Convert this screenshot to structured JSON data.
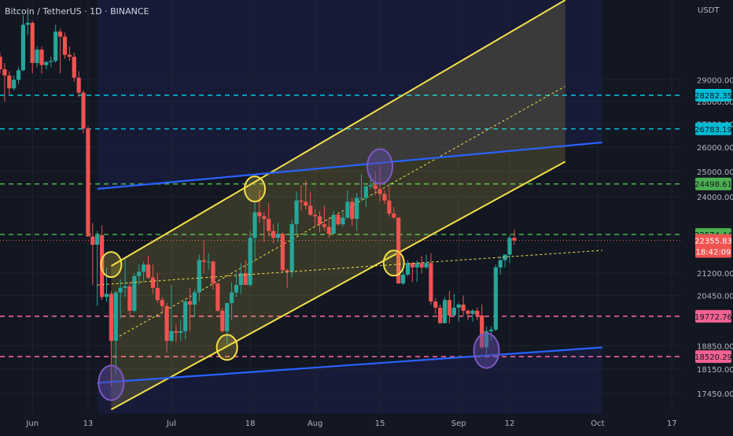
{
  "header": {
    "symbol": "Bitcoin / TetherUS",
    "separator1": " · ",
    "interval": "1D",
    "separator2": " · ",
    "exchange": "BINANCE"
  },
  "price_axis": {
    "currency": "USDT"
  },
  "colors": {
    "background": "#131722",
    "up": "#26a69a",
    "down": "#ef5350",
    "channel_line": "#f5e04a",
    "channel_fill": "#f5e04a",
    "trend_blue": "#2962ff",
    "circle_yellow": "#f5e04a",
    "circle_purple": "#7e57c2"
  },
  "chart_data": {
    "type": "candlestick",
    "x_axis": {
      "type": "date",
      "start": "2022-05-25",
      "end": "2022-10-19",
      "tick_labels": [
        {
          "label": "Jun",
          "date": "2022-06-01"
        },
        {
          "label": "13",
          "date": "2022-06-13"
        },
        {
          "label": "Jul",
          "date": "2022-07-01"
        },
        {
          "label": "18",
          "date": "2022-07-18"
        },
        {
          "label": "Aug",
          "date": "2022-08-01"
        },
        {
          "label": "15",
          "date": "2022-08-15"
        },
        {
          "label": "Sep",
          "date": "2022-09-01"
        },
        {
          "label": "12",
          "date": "2022-09-12"
        },
        {
          "label": "Oct",
          "date": "2022-10-01"
        },
        {
          "label": "17",
          "date": "2022-10-17"
        }
      ]
    },
    "y_axis": {
      "scale": "log",
      "ylim": [
        16900,
        33000
      ],
      "tick_labels": [
        "29000.00",
        "28000.00",
        "27000.00",
        "26000.00",
        "25000.00",
        "24000.00",
        "21200.00",
        "20450.00",
        "18850.00",
        "18150.00",
        "17450.00"
      ],
      "tick_values": [
        29000,
        28000,
        27000,
        26000,
        25000,
        24000,
        21200,
        20450,
        18850,
        18150,
        17450
      ]
    },
    "levels": [
      {
        "price": 28282.35,
        "label": "28282.35",
        "color": "#00bcd4",
        "style": "dashed"
      },
      {
        "price": 26783.19,
        "label": "26783.19",
        "color": "#00bcd4",
        "style": "dashed"
      },
      {
        "price": 24498.61,
        "label": "24498.61",
        "color": "#4caf50",
        "style": "dashed"
      },
      {
        "price": 22574.44,
        "label": "22574.44",
        "color": "#4caf50",
        "style": "dashed"
      },
      {
        "price": 19772.76,
        "label": "19772.76",
        "color": "#f06292",
        "style": "dashed"
      },
      {
        "price": 18520.29,
        "label": "18520.29",
        "color": "#f06292",
        "style": "dashed"
      }
    ],
    "last_price": {
      "price": 22355.83,
      "label": "22355.83",
      "countdown": "18:42:09",
      "color": "#ef5350"
    },
    "channel": {
      "upper": [
        {
          "date": "2022-06-18",
          "price": 21450
        },
        {
          "date": "2022-09-24",
          "price": 33000
        }
      ],
      "lower": [
        {
          "date": "2022-06-18",
          "price": 17000
        },
        {
          "date": "2022-09-24",
          "price": 25400
        }
      ],
      "mid": [
        {
          "date": "2022-06-18",
          "price": 19000
        },
        {
          "date": "2022-09-24",
          "price": 28700
        }
      ]
    },
    "blue_lines": [
      {
        "points": [
          {
            "date": "2022-06-15",
            "price": 24300
          },
          {
            "date": "2022-10-02",
            "price": 26200
          }
        ],
        "color": "#2962ff",
        "shade": "above-to-top"
      },
      {
        "points": [
          {
            "date": "2022-06-15",
            "price": 17750
          },
          {
            "date": "2022-10-02",
            "price": 18800
          }
        ],
        "color": "#2962ff",
        "shade": "below-to-bottom"
      }
    ],
    "dotted_mid_trend": [
      {
        "date": "2022-06-15",
        "price": 20800
      },
      {
        "date": "2022-10-02",
        "price": 22000
      }
    ],
    "circles": [
      {
        "date": "2022-06-18",
        "price": 21500,
        "color": "yellow"
      },
      {
        "date": "2022-07-13",
        "price": 18800,
        "color": "yellow"
      },
      {
        "date": "2022-07-19",
        "price": 24300,
        "color": "yellow"
      },
      {
        "date": "2022-08-15",
        "price": 25200,
        "color": "purple"
      },
      {
        "date": "2022-08-18",
        "price": 21550,
        "color": "yellow"
      },
      {
        "date": "2022-06-18",
        "price": 17750,
        "color": "purple"
      },
      {
        "date": "2022-09-07",
        "price": 18700,
        "color": "purple"
      }
    ],
    "ohlc": [
      [
        "2022-05-25",
        30100,
        30300,
        29300,
        29500
      ],
      [
        "2022-05-26",
        29500,
        29800,
        28000,
        29200
      ],
      [
        "2022-05-27",
        29200,
        29400,
        28300,
        28600
      ],
      [
        "2022-05-28",
        28600,
        29200,
        28500,
        29000
      ],
      [
        "2022-05-29",
        29000,
        29600,
        28800,
        29450
      ],
      [
        "2022-05-30",
        29450,
        32200,
        29400,
        31700
      ],
      [
        "2022-05-31",
        31700,
        32300,
        31200,
        31800
      ],
      [
        "2022-06-01",
        31800,
        31900,
        29300,
        29800
      ],
      [
        "2022-06-02",
        29800,
        30600,
        29600,
        30450
      ],
      [
        "2022-06-03",
        30450,
        30600,
        29300,
        29700
      ],
      [
        "2022-06-04",
        29700,
        29900,
        29500,
        29850
      ],
      [
        "2022-06-05",
        29850,
        30100,
        29600,
        29900
      ],
      [
        "2022-06-06",
        29900,
        31700,
        29800,
        31350
      ],
      [
        "2022-06-07",
        31350,
        31500,
        29300,
        31100
      ],
      [
        "2022-06-08",
        31100,
        31300,
        30000,
        30200
      ],
      [
        "2022-06-09",
        30200,
        30600,
        29900,
        30100
      ],
      [
        "2022-06-10",
        30100,
        30300,
        28900,
        29100
      ],
      [
        "2022-06-11",
        29100,
        29400,
        28200,
        28400
      ],
      [
        "2022-06-12",
        28400,
        28500,
        26600,
        26800
      ],
      [
        "2022-06-13",
        26800,
        26900,
        22600,
        22500
      ],
      [
        "2022-06-14",
        22500,
        23000,
        20800,
        22200
      ],
      [
        "2022-06-15",
        22200,
        22700,
        20100,
        22550
      ],
      [
        "2022-06-16",
        22550,
        22900,
        20300,
        20400
      ],
      [
        "2022-06-17",
        20400,
        21400,
        20250,
        20500
      ],
      [
        "2022-06-18",
        20500,
        20600,
        17650,
        19000
      ],
      [
        "2022-06-19",
        19000,
        20600,
        18000,
        20550
      ],
      [
        "2022-06-20",
        20550,
        21000,
        19700,
        20700
      ],
      [
        "2022-06-21",
        20700,
        21700,
        20400,
        20750
      ],
      [
        "2022-06-22",
        20750,
        20900,
        19800,
        19950
      ],
      [
        "2022-06-23",
        19950,
        21200,
        19900,
        21100
      ],
      [
        "2022-06-24",
        21100,
        21500,
        20800,
        21250
      ],
      [
        "2022-06-25",
        21250,
        21600,
        20900,
        21500
      ],
      [
        "2022-06-26",
        21500,
        21800,
        21000,
        21050
      ],
      [
        "2022-06-27",
        21050,
        21500,
        20500,
        20700
      ],
      [
        "2022-06-28",
        20700,
        21200,
        20200,
        20300
      ],
      [
        "2022-06-29",
        20300,
        20400,
        19850,
        20100
      ],
      [
        "2022-06-30",
        20100,
        20200,
        18650,
        19000
      ],
      [
        "2022-07-01",
        19000,
        20800,
        18950,
        19300
      ],
      [
        "2022-07-02",
        19300,
        19500,
        18950,
        19250
      ],
      [
        "2022-07-03",
        19250,
        19650,
        19000,
        19300
      ],
      [
        "2022-07-04",
        19300,
        20300,
        19050,
        20250
      ],
      [
        "2022-07-05",
        20250,
        20700,
        19300,
        20150
      ],
      [
        "2022-07-06",
        20150,
        20650,
        19750,
        20550
      ],
      [
        "2022-07-07",
        20550,
        21850,
        20250,
        21650
      ],
      [
        "2022-07-08",
        21650,
        22350,
        21200,
        21600
      ],
      [
        "2022-07-09",
        21600,
        21900,
        21300,
        21600
      ],
      [
        "2022-07-10",
        21600,
        21650,
        20650,
        20850
      ],
      [
        "2022-07-11",
        20850,
        20900,
        19900,
        19950
      ],
      [
        "2022-07-12",
        19950,
        20050,
        19250,
        19300
      ],
      [
        "2022-07-13",
        19300,
        20200,
        18900,
        20200
      ],
      [
        "2022-07-14",
        20200,
        20900,
        19650,
        20550
      ],
      [
        "2022-07-15",
        20550,
        21200,
        20400,
        20800
      ],
      [
        "2022-07-16",
        20800,
        21550,
        20500,
        21200
      ],
      [
        "2022-07-17",
        21200,
        21650,
        20800,
        20800
      ],
      [
        "2022-07-18",
        20800,
        22700,
        20750,
        22450
      ],
      [
        "2022-07-19",
        22450,
        23800,
        21600,
        23400
      ],
      [
        "2022-07-20",
        23400,
        24250,
        23000,
        23250
      ],
      [
        "2022-07-21",
        23250,
        23400,
        22300,
        23150
      ],
      [
        "2022-07-22",
        23150,
        23750,
        22500,
        22700
      ],
      [
        "2022-07-23",
        22700,
        22950,
        22250,
        22450
      ],
      [
        "2022-07-24",
        22450,
        23000,
        22300,
        22600
      ],
      [
        "2022-07-25",
        22600,
        22650,
        21250,
        21300
      ],
      [
        "2022-07-26",
        21300,
        21350,
        20700,
        21250
      ],
      [
        "2022-07-27",
        21250,
        23100,
        21050,
        22950
      ],
      [
        "2022-07-28",
        22950,
        24200,
        22600,
        23850
      ],
      [
        "2022-07-29",
        23850,
        24450,
        23450,
        23800
      ],
      [
        "2022-07-30",
        23800,
        24650,
        23500,
        23650
      ],
      [
        "2022-07-31",
        23650,
        24200,
        23250,
        23300
      ],
      [
        "2022-08-01",
        23300,
        23500,
        22850,
        23250
      ],
      [
        "2022-08-02",
        23250,
        23450,
        22650,
        22950
      ],
      [
        "2022-08-03",
        22950,
        23650,
        22700,
        22850
      ],
      [
        "2022-08-04",
        22850,
        23200,
        22450,
        22600
      ],
      [
        "2022-08-05",
        22600,
        23450,
        22600,
        23300
      ],
      [
        "2022-08-06",
        23300,
        23400,
        22900,
        22950
      ],
      [
        "2022-08-07",
        22950,
        23400,
        22850,
        23200
      ],
      [
        "2022-08-08",
        23200,
        24250,
        23150,
        23800
      ],
      [
        "2022-08-09",
        23800,
        23950,
        22900,
        23150
      ],
      [
        "2022-08-10",
        23150,
        24150,
        22700,
        23950
      ],
      [
        "2022-08-11",
        23950,
        24900,
        23850,
        23950
      ],
      [
        "2022-08-12",
        23950,
        24450,
        23600,
        24400
      ],
      [
        "2022-08-13",
        24400,
        24900,
        24300,
        24450
      ],
      [
        "2022-08-14",
        24450,
        25000,
        24050,
        24300
      ],
      [
        "2022-08-15",
        24300,
        25200,
        23800,
        24100
      ],
      [
        "2022-08-16",
        24100,
        24250,
        23700,
        23850
      ],
      [
        "2022-08-17",
        23850,
        24400,
        23250,
        23350
      ],
      [
        "2022-08-18",
        23350,
        23600,
        23150,
        23200
      ],
      [
        "2022-08-19",
        23200,
        23200,
        20850,
        20850
      ],
      [
        "2022-08-20",
        20850,
        21350,
        20800,
        21150
      ],
      [
        "2022-08-21",
        21150,
        21650,
        21100,
        21550
      ],
      [
        "2022-08-22",
        21550,
        21600,
        20900,
        21400
      ],
      [
        "2022-08-23",
        21400,
        21650,
        20900,
        21550
      ],
      [
        "2022-08-24",
        21550,
        21800,
        21200,
        21400
      ],
      [
        "2022-08-25",
        21400,
        21850,
        21350,
        21550
      ],
      [
        "2022-08-26",
        21550,
        21900,
        20150,
        20250
      ],
      [
        "2022-08-27",
        20250,
        20350,
        19850,
        20050
      ],
      [
        "2022-08-28",
        20050,
        20150,
        19600,
        19550
      ],
      [
        "2022-08-29",
        19550,
        20400,
        19550,
        20300
      ],
      [
        "2022-08-30",
        20300,
        20600,
        19550,
        19800
      ],
      [
        "2022-08-31",
        19800,
        20500,
        19800,
        20050
      ],
      [
        "2022-09-01",
        20050,
        20200,
        19600,
        20150
      ],
      [
        "2022-09-02",
        20150,
        20450,
        19800,
        19950
      ],
      [
        "2022-09-03",
        19950,
        20000,
        19650,
        19850
      ],
      [
        "2022-09-04",
        19850,
        20000,
        19600,
        19950
      ],
      [
        "2022-09-05",
        19950,
        20050,
        19650,
        19800
      ],
      [
        "2022-09-06",
        19800,
        20150,
        18750,
        18800
      ],
      [
        "2022-09-07",
        18800,
        19450,
        18550,
        19300
      ],
      [
        "2022-09-08",
        19300,
        19450,
        19000,
        19350
      ],
      [
        "2022-09-09",
        19350,
        21500,
        19300,
        21400
      ],
      [
        "2022-09-10",
        21400,
        21800,
        21150,
        21650
      ],
      [
        "2022-09-11",
        21650,
        21850,
        21400,
        21850
      ],
      [
        "2022-09-12",
        21850,
        22550,
        21550,
        22450
      ],
      [
        "2022-09-13",
        22450,
        22750,
        22200,
        22356
      ]
    ]
  }
}
